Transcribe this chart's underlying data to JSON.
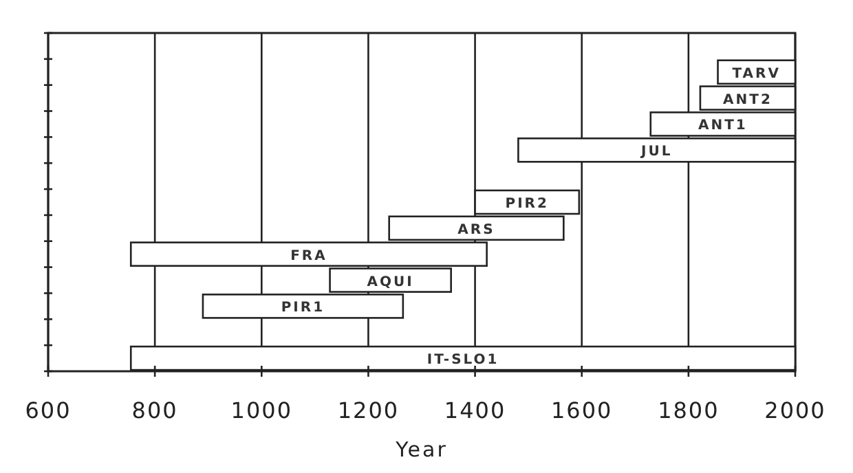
{
  "chart_data": {
    "type": "bar",
    "orientation": "horizontal",
    "xlabel": "Year",
    "categories": [
      null,
      "TARV",
      "ANT2",
      "ANT1",
      "JUL",
      null,
      "PIR2",
      "ARS",
      "FRA",
      "AQUI",
      "PIR1",
      null,
      "IT-SLO1"
    ],
    "base": [
      null,
      1855,
      1822,
      1729,
      1481,
      null,
      1400,
      1239,
      755,
      1128,
      890,
      null,
      755
    ],
    "values": [
      null,
      145,
      178,
      271,
      519,
      null,
      195,
      327,
      667,
      227,
      375,
      null,
      1245
    ],
    "color": "#ffffff",
    "xlim": [
      600,
      2000
    ],
    "xticks": [
      600,
      800,
      1000,
      1200,
      1400,
      1600,
      1800,
      2000
    ],
    "grid": "x",
    "tick_labels": "x"
  }
}
